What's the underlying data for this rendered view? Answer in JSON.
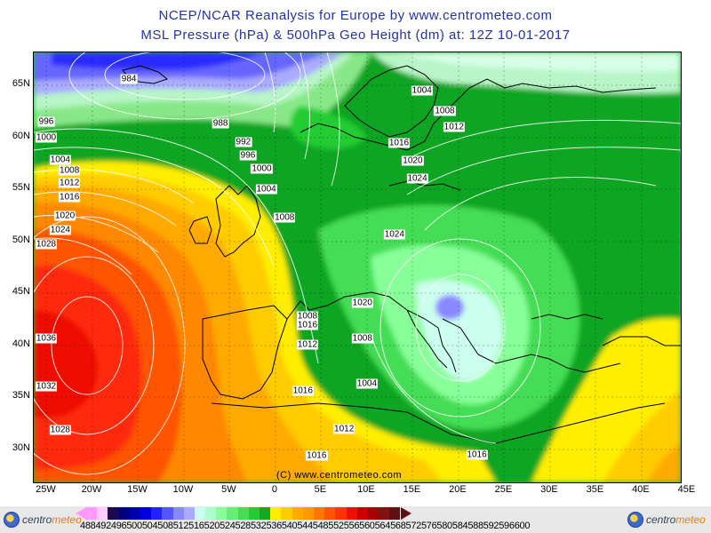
{
  "title_line1": "NCEP/NCAR Reanalysis for Europe by www.centrometeo.com",
  "title_line2": "MSL Pressure (hPa) & 500hPa Geo Height (dm) at: 12Z 10-01-2017",
  "credit": "(C) www.centrometeo.com",
  "lat_labels": [
    "65N",
    "60N",
    "55N",
    "50N",
    "45N",
    "40N",
    "35N",
    "30N"
  ],
  "lon_labels": [
    "25W",
    "20W",
    "15W",
    "10W",
    "5W",
    "0",
    "5E",
    "10E",
    "15E",
    "20E",
    "25E",
    "30E",
    "35E",
    "40E",
    "45E"
  ],
  "isobar_labels": [
    {
      "text": "984",
      "lat": 65.6,
      "lon": -16
    },
    {
      "text": "996",
      "lat": 61.5,
      "lon": -30
    },
    {
      "text": "1000",
      "lat": 60.0,
      "lon": -28
    },
    {
      "text": "1004",
      "lat": 57.9,
      "lon": -23.5
    },
    {
      "text": "1008",
      "lat": 56.8,
      "lon": -22.5
    },
    {
      "text": "1012",
      "lat": 55.6,
      "lon": -22.5
    },
    {
      "text": "1016",
      "lat": 54.3,
      "lon": -22.5
    },
    {
      "text": "1020",
      "lat": 52.5,
      "lon": -23
    },
    {
      "text": "1024",
      "lat": 51.1,
      "lon": -23.5
    },
    {
      "text": "1028",
      "lat": 49.7,
      "lon": -25.5
    },
    {
      "text": "1036",
      "lat": 40.7,
      "lon": -26
    },
    {
      "text": "1032",
      "lat": 36.1,
      "lon": -29
    },
    {
      "text": "1028",
      "lat": 31.9,
      "lon": -23.5
    },
    {
      "text": "988",
      "lat": 61.4,
      "lon": -6
    },
    {
      "text": "992",
      "lat": 59.6,
      "lon": -3.5
    },
    {
      "text": "996",
      "lat": 58.3,
      "lon": -3
    },
    {
      "text": "1000",
      "lat": 57.0,
      "lon": -1.5
    },
    {
      "text": "1004",
      "lat": 55.0,
      "lon": -1
    },
    {
      "text": "1008",
      "lat": 52.3,
      "lon": 1
    },
    {
      "text": "1008",
      "lat": 42.8,
      "lon": 3.5
    },
    {
      "text": "1016",
      "lat": 35.6,
      "lon": 3
    },
    {
      "text": "1004",
      "lat": 64.5,
      "lon": 16
    },
    {
      "text": "1008",
      "lat": 62.6,
      "lon": 18.5
    },
    {
      "text": "1012",
      "lat": 61.0,
      "lon": 19.5
    },
    {
      "text": "1016",
      "lat": 59.5,
      "lon": 13.5
    },
    {
      "text": "1020",
      "lat": 57.8,
      "lon": 15
    },
    {
      "text": "1024",
      "lat": 56.1,
      "lon": 15.5
    },
    {
      "text": "1024",
      "lat": 50.7,
      "lon": 13
    },
    {
      "text": "1020",
      "lat": 44.1,
      "lon": 9.5
    },
    {
      "text": "1016",
      "lat": 42.0,
      "lon": 3.5
    },
    {
      "text": "1012",
      "lat": 40.1,
      "lon": 3.5
    },
    {
      "text": "1008",
      "lat": 40.7,
      "lon": 9.5
    },
    {
      "text": "1004",
      "lat": 36.3,
      "lon": 10
    },
    {
      "text": "1012",
      "lat": 32.0,
      "lon": 7.5
    },
    {
      "text": "1016",
      "lat": 29.5,
      "lon": 22
    },
    {
      "text": "1016",
      "lat": 29.4,
      "lon": 4.5
    }
  ],
  "colorbar": {
    "labels": [
      "488",
      "492",
      "496",
      "500",
      "504",
      "508",
      "512",
      "516",
      "520",
      "524",
      "528",
      "532",
      "536",
      "540",
      "544",
      "548",
      "552",
      "556",
      "560",
      "564",
      "568",
      "572",
      "576",
      "580",
      "584",
      "588",
      "592",
      "596",
      "600"
    ],
    "colors": [
      "#ff99ff",
      "#ffccff",
      "#1a0a50",
      "#000080",
      "#0000b0",
      "#0000e0",
      "#2222ff",
      "#5555ff",
      "#8888ff",
      "#aaaaff",
      "#ccffee",
      "#aaffcc",
      "#88ff99",
      "#66ee77",
      "#44dd55",
      "#22cc33",
      "#11aa22",
      "#ffee00",
      "#ffcc00",
      "#ffaa00",
      "#ff9900",
      "#ff7700",
      "#ff5500",
      "#ff3300",
      "#ee1100",
      "#cc0000",
      "#a80000",
      "#841010",
      "#601010"
    ]
  }
}
